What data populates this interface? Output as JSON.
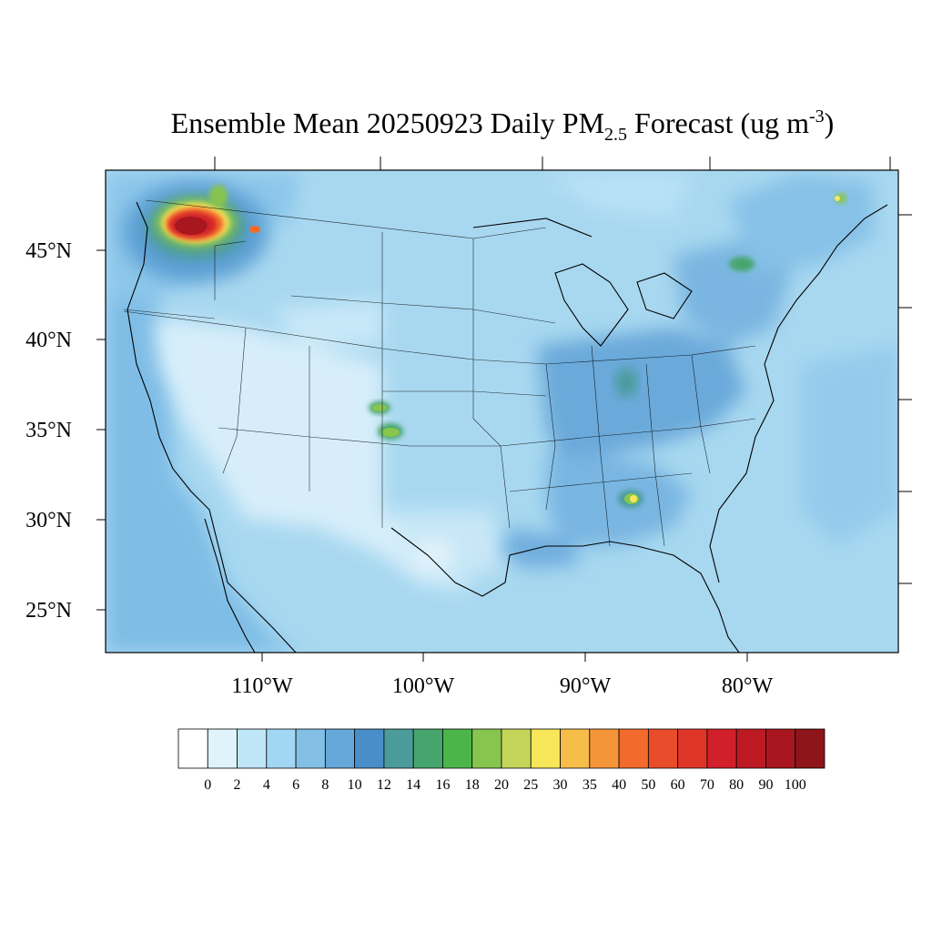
{
  "title": {
    "prefix": "Ensemble Mean 20250923 Daily PM",
    "subscript": "2.5",
    "middle": " Forecast (ug m",
    "superscript": "-3",
    "suffix": ")"
  },
  "map": {
    "region": "Contiguous United States",
    "lat_labels": [
      "45°N",
      "40°N",
      "35°N",
      "30°N",
      "25°N"
    ],
    "lon_labels": [
      "110°W",
      "100°W",
      "90°W",
      "80°W"
    ],
    "background_color": "#a8d8f0"
  },
  "colorbar": {
    "labels": [
      "0",
      "2",
      "4",
      "6",
      "8",
      "10",
      "12",
      "14",
      "16",
      "18",
      "20",
      "25",
      "30",
      "35",
      "40",
      "50",
      "60",
      "70",
      "80",
      "90",
      "100"
    ],
    "colors": [
      "#ffffff",
      "#e0f3fb",
      "#bfe6f7",
      "#a2d7f3",
      "#84c0e6",
      "#65a8d9",
      "#4a8ec9",
      "#4b9b9b",
      "#46a56c",
      "#4cb54a",
      "#87c54e",
      "#c4d65a",
      "#f7e55a",
      "#f6be48",
      "#f5953a",
      "#f26a2c",
      "#e94c2a",
      "#de3528",
      "#d12029",
      "#bd1a24",
      "#a8171f",
      "#8e1519"
    ]
  },
  "hotspots": [
    {
      "name": "pacific-northwest-smoke",
      "level": "80-100"
    },
    {
      "name": "colorado-plume-north",
      "level": "18-20"
    },
    {
      "name": "colorado-plume-south",
      "level": "18-20"
    },
    {
      "name": "alabama-hotspot",
      "level": "25-30"
    },
    {
      "name": "nova-scotia-hotspot",
      "level": "18-20"
    },
    {
      "name": "ohio-valley-elevated",
      "level": "12-16"
    },
    {
      "name": "new-york-elevated",
      "level": "14-18"
    }
  ]
}
